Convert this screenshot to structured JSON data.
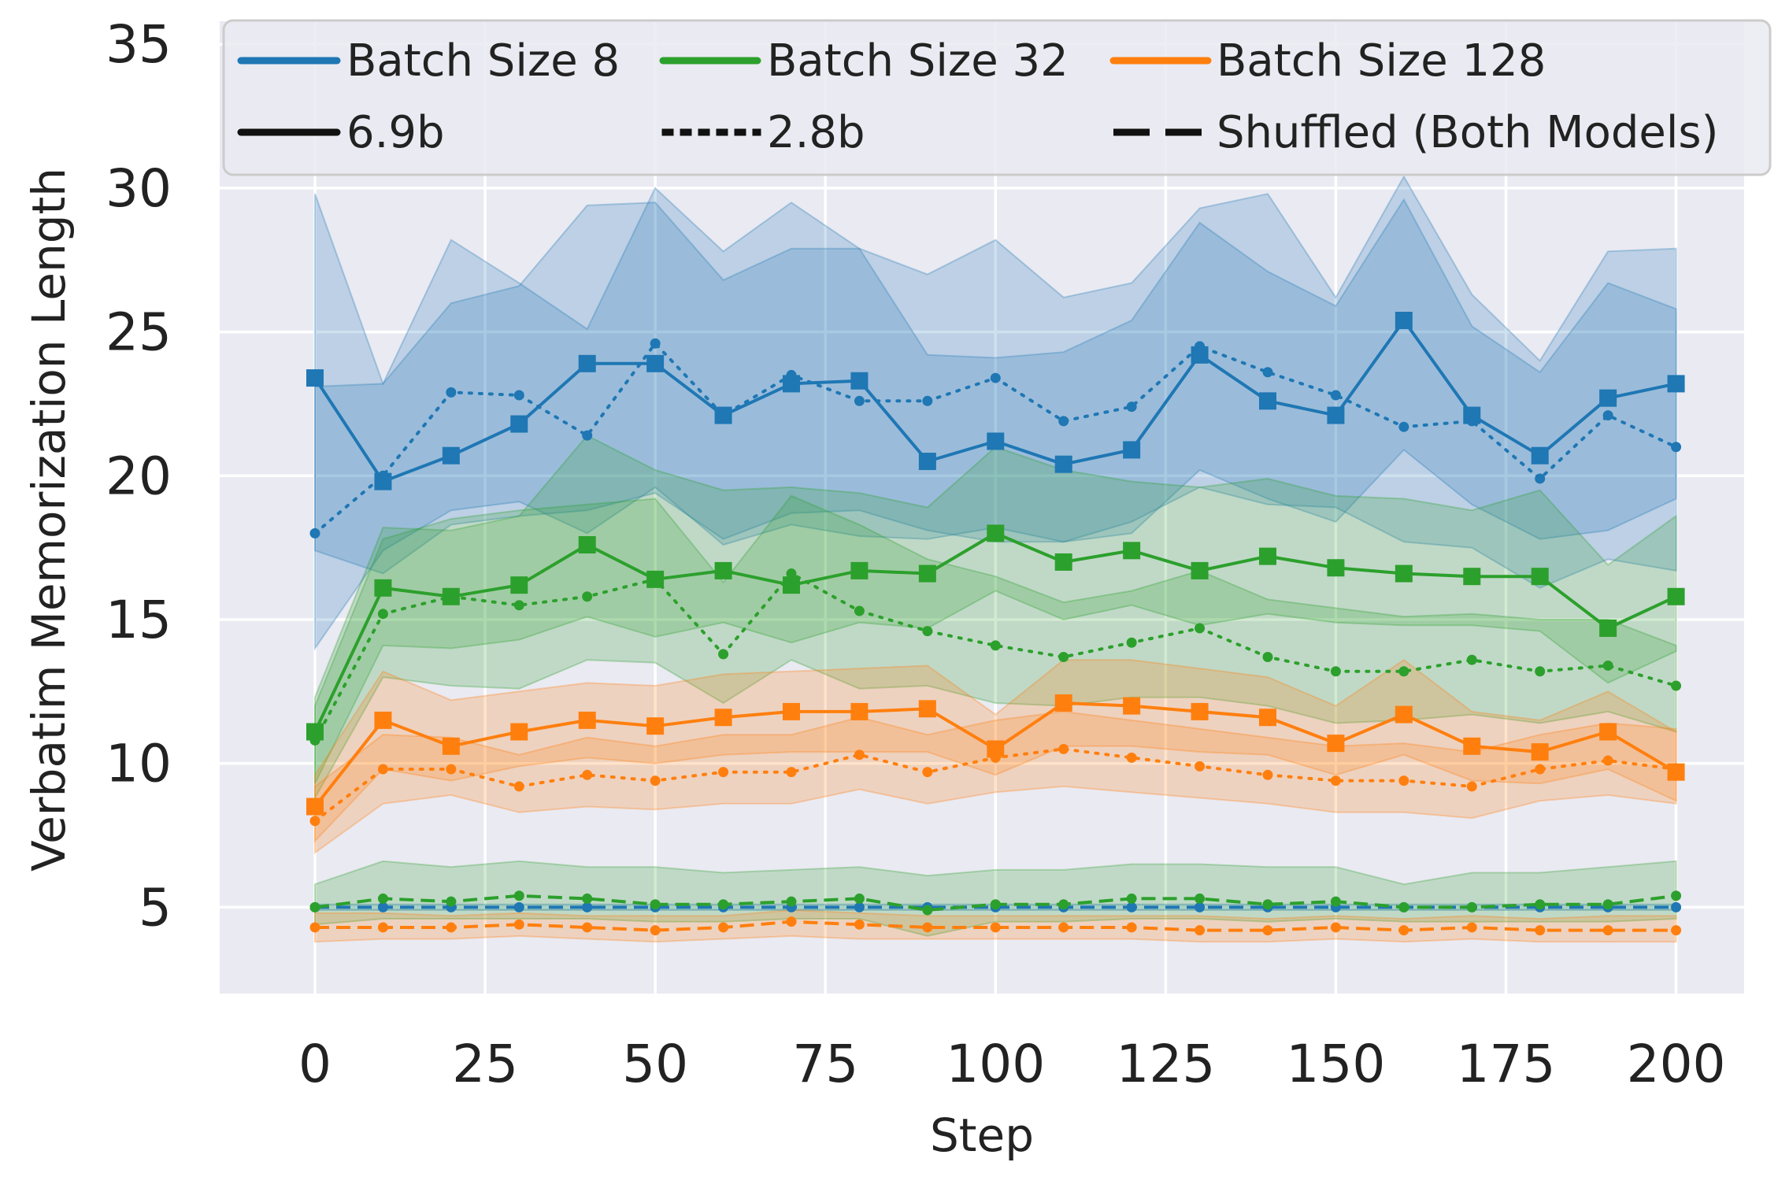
{
  "chart_data": {
    "type": "line",
    "title": "",
    "xlabel": "Step",
    "ylabel": "Verbatim Memorization Length",
    "xlim": [
      -14,
      210
    ],
    "ylim": [
      2,
      35.8
    ],
    "xticks": [
      0,
      25,
      50,
      75,
      100,
      125,
      150,
      175,
      200
    ],
    "yticks": [
      5,
      10,
      15,
      20,
      25,
      30,
      35
    ],
    "grid": true,
    "legend_position": "top",
    "legend": {
      "colors": [
        {
          "label": "Batch Size 8",
          "color": "#1f77b4"
        },
        {
          "label": "Batch Size 32",
          "color": "#2ca02c"
        },
        {
          "label": "Batch Size 128",
          "color": "#ff7f0e"
        }
      ],
      "styles": [
        {
          "label": "6.9b",
          "dash": "solid"
        },
        {
          "label": "2.8b",
          "dash": "dotted"
        },
        {
          "label": "Shuffled (Both Models)",
          "dash": "dashed"
        }
      ]
    },
    "x": [
      0,
      10,
      20,
      30,
      40,
      50,
      60,
      70,
      80,
      90,
      100,
      110,
      120,
      130,
      140,
      150,
      160,
      170,
      180,
      190,
      200
    ],
    "series": [
      {
        "name": "Batch Size 8",
        "model": "6.9b",
        "style": "solid",
        "marker": "square",
        "color": "#1f77b4",
        "values": [
          23.4,
          19.8,
          20.7,
          21.8,
          23.9,
          23.9,
          22.1,
          23.2,
          23.3,
          20.5,
          21.2,
          20.4,
          20.9,
          24.2,
          22.6,
          22.1,
          25.4,
          22.1,
          20.7,
          22.7,
          23.2
        ],
        "lower": [
          17.4,
          16.6,
          18.3,
          18.6,
          18.8,
          19.4,
          17.8,
          18.7,
          18.8,
          18.1,
          17.7,
          17.7,
          18.0,
          20.2,
          19.2,
          18.4,
          20.9,
          19.0,
          17.8,
          18.1,
          19.2
        ],
        "upper": [
          29.8,
          23.2,
          26.0,
          26.6,
          29.4,
          29.5,
          26.8,
          27.9,
          27.9,
          24.2,
          24.1,
          24.3,
          25.4,
          28.8,
          27.1,
          25.9,
          29.6,
          25.2,
          23.6,
          26.7,
          25.8
        ]
      },
      {
        "name": "Batch Size 8",
        "model": "2.8b",
        "style": "dotted",
        "marker": "dot",
        "color": "#1f77b4",
        "values": [
          18.0,
          20.0,
          22.9,
          22.8,
          21.4,
          24.6,
          22.1,
          23.5,
          22.6,
          22.6,
          23.4,
          21.9,
          22.4,
          24.5,
          23.6,
          22.8,
          21.7,
          21.9,
          19.9,
          22.1,
          21.0
        ],
        "lower": [
          14.0,
          17.4,
          18.8,
          19.1,
          18.0,
          19.6,
          17.6,
          18.3,
          17.9,
          17.8,
          18.2,
          17.7,
          18.4,
          19.6,
          19.0,
          18.9,
          17.7,
          17.5,
          16.1,
          17.1,
          16.7
        ],
        "upper": [
          23.1,
          23.2,
          28.2,
          26.7,
          25.1,
          30.0,
          27.8,
          29.5,
          27.9,
          27.0,
          28.2,
          26.2,
          26.7,
          29.3,
          29.8,
          26.2,
          30.4,
          26.3,
          24.0,
          27.8,
          27.9
        ]
      },
      {
        "name": "Batch Size 32",
        "model": "6.9b",
        "style": "solid",
        "marker": "square",
        "color": "#2ca02c",
        "values": [
          11.1,
          16.1,
          15.8,
          16.2,
          17.6,
          16.4,
          16.7,
          16.2,
          16.7,
          16.6,
          18.0,
          17.0,
          17.4,
          16.7,
          17.2,
          16.8,
          16.6,
          16.5,
          16.5,
          14.7,
          15.8
        ],
        "lower": [
          9.3,
          14.1,
          14.0,
          14.3,
          15.1,
          14.4,
          14.9,
          14.2,
          14.9,
          14.7,
          16.0,
          15.0,
          15.5,
          14.8,
          15.2,
          14.9,
          14.8,
          14.8,
          14.6,
          12.8,
          13.9
        ],
        "upper": [
          12.3,
          18.2,
          18.1,
          18.6,
          21.4,
          20.2,
          19.5,
          19.6,
          19.4,
          18.9,
          21.0,
          20.2,
          19.8,
          19.6,
          19.9,
          19.3,
          19.2,
          18.8,
          19.5,
          16.9,
          18.6
        ]
      },
      {
        "name": "Batch Size 32",
        "model": "2.8b",
        "style": "dotted",
        "marker": "dot",
        "color": "#2ca02c",
        "values": [
          10.8,
          15.2,
          15.8,
          15.5,
          15.8,
          16.4,
          13.8,
          16.6,
          15.3,
          14.6,
          14.1,
          13.7,
          14.2,
          14.7,
          13.7,
          13.2,
          13.2,
          13.6,
          13.2,
          13.4,
          12.7
        ],
        "lower": [
          8.8,
          13.0,
          12.7,
          12.6,
          13.6,
          13.5,
          12.1,
          13.6,
          12.6,
          12.7,
          12.1,
          12.0,
          12.3,
          12.3,
          12.0,
          11.4,
          11.5,
          11.7,
          11.4,
          11.8,
          11.1
        ],
        "upper": [
          12.0,
          17.8,
          18.5,
          18.8,
          19.0,
          19.2,
          16.3,
          19.3,
          18.3,
          17.1,
          16.5,
          15.6,
          16.0,
          16.7,
          15.7,
          15.4,
          15.1,
          15.2,
          15.0,
          15.0,
          14.1
        ]
      },
      {
        "name": "Batch Size 128",
        "model": "6.9b",
        "style": "solid",
        "marker": "square",
        "color": "#ff7f0e",
        "values": [
          8.5,
          11.5,
          10.6,
          11.1,
          11.5,
          11.3,
          11.6,
          11.8,
          11.8,
          11.9,
          10.5,
          12.1,
          12.0,
          11.8,
          11.6,
          10.7,
          11.7,
          10.6,
          10.4,
          11.1,
          9.7
        ],
        "lower": [
          7.3,
          9.8,
          9.4,
          9.9,
          10.2,
          10.0,
          10.3,
          10.4,
          10.4,
          10.4,
          9.6,
          10.6,
          10.6,
          10.4,
          10.3,
          9.6,
          10.3,
          9.4,
          9.3,
          9.8,
          8.7
        ],
        "upper": [
          9.6,
          13.2,
          12.2,
          12.5,
          12.8,
          12.7,
          13.1,
          13.2,
          13.3,
          13.4,
          11.7,
          13.6,
          13.6,
          13.3,
          13.0,
          12.0,
          13.6,
          11.8,
          11.5,
          12.5,
          11.1
        ]
      },
      {
        "name": "Batch Size 128",
        "model": "2.8b",
        "style": "dotted",
        "marker": "dot",
        "color": "#ff7f0e",
        "values": [
          8.0,
          9.8,
          9.8,
          9.2,
          9.6,
          9.4,
          9.7,
          9.7,
          10.3,
          9.7,
          10.2,
          10.5,
          10.2,
          9.9,
          9.6,
          9.4,
          9.4,
          9.2,
          9.8,
          10.1,
          9.8
        ],
        "lower": [
          6.9,
          8.6,
          8.9,
          8.3,
          8.5,
          8.4,
          8.6,
          8.6,
          9.1,
          8.6,
          9.0,
          9.2,
          9.0,
          8.8,
          8.6,
          8.3,
          8.3,
          8.1,
          8.7,
          8.9,
          8.6
        ],
        "upper": [
          9.2,
          11.0,
          10.9,
          10.3,
          10.9,
          10.6,
          11.0,
          11.0,
          11.6,
          11.0,
          11.5,
          11.8,
          11.5,
          11.2,
          10.9,
          10.6,
          10.7,
          10.4,
          11.0,
          11.4,
          11.2
        ]
      },
      {
        "name": "Batch Size 8",
        "model": "Shuffled (Both Models)",
        "style": "dashed",
        "marker": "dot",
        "color": "#1f77b4",
        "values": [
          5.0,
          5.0,
          5.0,
          5.0,
          5.0,
          5.0,
          5.0,
          5.0,
          5.0,
          5.0,
          5.0,
          5.0,
          5.0,
          5.0,
          5.0,
          5.0,
          5.0,
          5.0,
          5.0,
          5.0,
          5.0
        ],
        "lower": [
          4.9,
          4.9,
          4.9,
          4.9,
          4.9,
          4.9,
          4.9,
          4.9,
          4.9,
          4.9,
          4.9,
          4.9,
          4.9,
          4.9,
          4.9,
          4.9,
          4.9,
          4.9,
          4.9,
          4.9,
          4.9
        ],
        "upper": [
          5.1,
          5.1,
          5.1,
          5.1,
          5.1,
          5.1,
          5.1,
          5.1,
          5.1,
          5.1,
          5.1,
          5.1,
          5.1,
          5.1,
          5.1,
          5.1,
          5.1,
          5.1,
          5.1,
          5.1,
          5.1
        ]
      },
      {
        "name": "Batch Size 32",
        "model": "Shuffled (Both Models)",
        "style": "dashed",
        "marker": "dot",
        "color": "#2ca02c",
        "values": [
          5.0,
          5.3,
          5.2,
          5.4,
          5.3,
          5.1,
          5.1,
          5.2,
          5.3,
          4.9,
          5.1,
          5.1,
          5.3,
          5.3,
          5.1,
          5.2,
          5.0,
          5.0,
          5.1,
          5.1,
          5.4
        ],
        "lower": [
          4.4,
          4.6,
          4.6,
          4.6,
          4.6,
          4.5,
          4.5,
          4.6,
          4.6,
          4.0,
          4.5,
          4.5,
          4.6,
          4.6,
          4.5,
          4.6,
          4.5,
          4.5,
          4.5,
          4.5,
          4.6
        ],
        "upper": [
          5.8,
          6.6,
          6.4,
          6.6,
          6.4,
          6.4,
          6.2,
          6.3,
          6.4,
          6.1,
          6.3,
          6.3,
          6.5,
          6.5,
          6.4,
          6.4,
          5.8,
          6.2,
          6.2,
          6.4,
          6.6
        ]
      },
      {
        "name": "Batch Size 128",
        "model": "Shuffled (Both Models)",
        "style": "dashed",
        "marker": "dot",
        "color": "#ff7f0e",
        "values": [
          4.3,
          4.3,
          4.3,
          4.4,
          4.3,
          4.2,
          4.3,
          4.5,
          4.4,
          4.3,
          4.3,
          4.3,
          4.3,
          4.2,
          4.2,
          4.3,
          4.2,
          4.3,
          4.2,
          4.2,
          4.2
        ],
        "lower": [
          3.8,
          3.9,
          3.9,
          4.0,
          3.9,
          3.8,
          3.9,
          4.0,
          3.9,
          3.9,
          3.9,
          3.9,
          3.9,
          3.8,
          3.8,
          3.9,
          3.8,
          3.9,
          3.8,
          3.8,
          3.8
        ],
        "upper": [
          4.8,
          4.8,
          4.7,
          4.8,
          4.7,
          4.7,
          4.7,
          4.9,
          4.8,
          4.7,
          4.7,
          4.7,
          4.7,
          4.7,
          4.6,
          4.7,
          4.6,
          4.7,
          4.6,
          4.7,
          4.7
        ]
      }
    ]
  }
}
